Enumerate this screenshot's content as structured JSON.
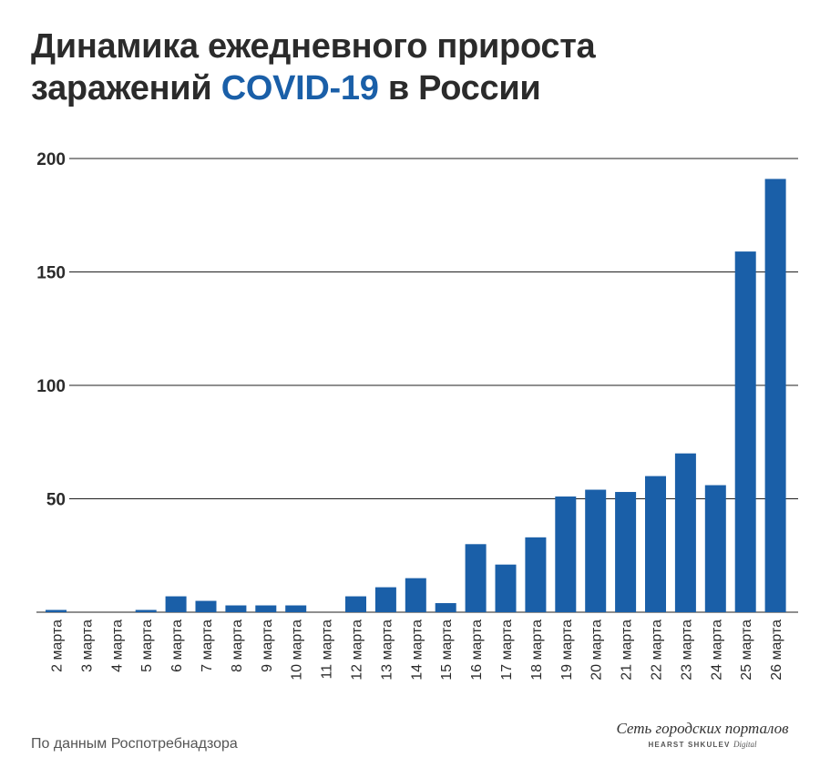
{
  "title": {
    "line1": "Динамика ежедневного прироста",
    "line2_prefix": "заражений ",
    "line2_accent": "COVID-19",
    "line2_suffix": " в России"
  },
  "source": "По данным Роспотребнадзора",
  "logo": {
    "line1": "Сеть городских порталов",
    "line2": "HEARST SHKULEV",
    "line2_italic": "Digital"
  },
  "colors": {
    "bar": "#1a5fa8",
    "accent": "#1a5fa8",
    "grid": "#1f1f1f",
    "text": "#2b2b2b"
  },
  "chart_data": {
    "type": "bar",
    "categories": [
      "2 марта",
      "3 марта",
      "4 марта",
      "5 марта",
      "6 марта",
      "7 марта",
      "8 марта",
      "9 марта",
      "10 марта",
      "11 марта",
      "12 марта",
      "13 марта",
      "14 марта",
      "15 марта",
      "16 марта",
      "17 марта",
      "18 марта",
      "19 марта",
      "20 марта",
      "21 марта",
      "22 марта",
      "23 марта",
      "24 марта",
      "25 марта",
      "26 марта"
    ],
    "values": [
      1,
      0,
      0,
      1,
      7,
      5,
      3,
      3,
      3,
      0,
      7,
      11,
      15,
      4,
      30,
      21,
      33,
      51,
      54,
      53,
      60,
      70,
      56,
      159,
      191
    ],
    "yticks": [
      50,
      100,
      150,
      200
    ],
    "ylim": [
      0,
      200
    ],
    "grid": true,
    "title": "Динамика ежедневного прироста заражений COVID-19 в России"
  }
}
